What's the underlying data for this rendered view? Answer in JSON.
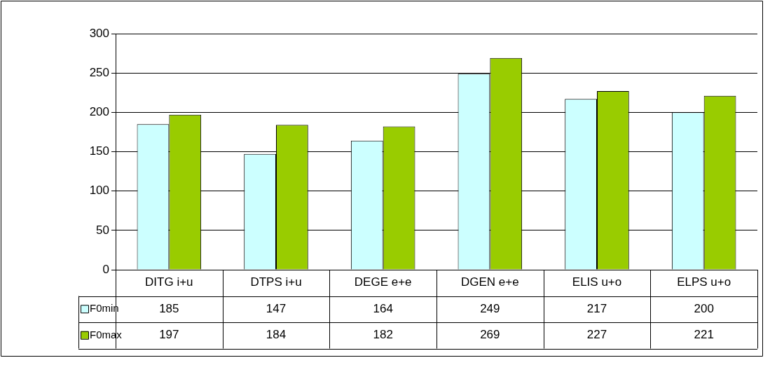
{
  "chart_data": {
    "type": "bar",
    "categories": [
      "DITG i+u",
      "DTPS i+u",
      "DEGE e+e",
      "DGEN e+e",
      "ELIS u+o",
      "ELPS u+o"
    ],
    "series": [
      {
        "name": "F0min",
        "color": "#ccffff",
        "values": [
          185,
          147,
          164,
          249,
          217,
          200
        ]
      },
      {
        "name": "F0max",
        "color": "#99cc00",
        "values": [
          197,
          184,
          182,
          269,
          227,
          221
        ]
      }
    ],
    "ylim": [
      0,
      300
    ],
    "yticks": [
      0,
      50,
      100,
      150,
      200,
      250,
      300
    ],
    "grid": "y",
    "legend": "bottom left",
    "data_labels": true
  }
}
